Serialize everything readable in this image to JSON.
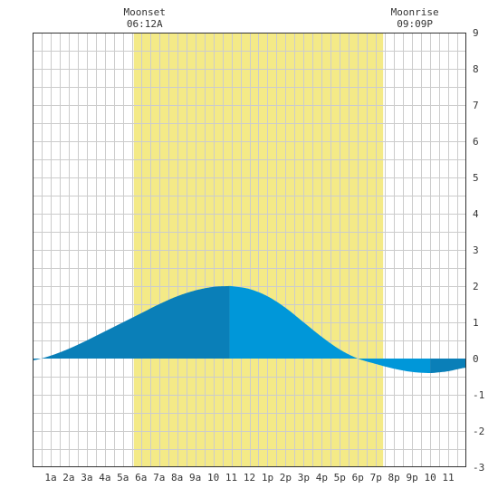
{
  "chart_data": {
    "type": "area",
    "x_unit": "hour of day",
    "xlim": [
      0,
      24
    ],
    "ylim": [
      -3,
      9
    ],
    "y_ticks": [
      -3,
      -2,
      -1,
      0,
      1,
      2,
      3,
      4,
      5,
      6,
      7,
      8,
      9
    ],
    "x_ticks": [
      {
        "x": 1,
        "label": "1a"
      },
      {
        "x": 2,
        "label": "2a"
      },
      {
        "x": 3,
        "label": "3a"
      },
      {
        "x": 4,
        "label": "4a"
      },
      {
        "x": 5,
        "label": "5a"
      },
      {
        "x": 6,
        "label": "6a"
      },
      {
        "x": 7,
        "label": "7a"
      },
      {
        "x": 8,
        "label": "8a"
      },
      {
        "x": 9,
        "label": "9a"
      },
      {
        "x": 10,
        "label": "10"
      },
      {
        "x": 11,
        "label": "11"
      },
      {
        "x": 12,
        "label": "12"
      },
      {
        "x": 13,
        "label": "1p"
      },
      {
        "x": 14,
        "label": "2p"
      },
      {
        "x": 15,
        "label": "3p"
      },
      {
        "x": 16,
        "label": "4p"
      },
      {
        "x": 17,
        "label": "5p"
      },
      {
        "x": 18,
        "label": "6p"
      },
      {
        "x": 19,
        "label": "7p"
      },
      {
        "x": 20,
        "label": "8p"
      },
      {
        "x": 21,
        "label": "9p"
      },
      {
        "x": 22,
        "label": "10"
      },
      {
        "x": 23,
        "label": "11"
      }
    ],
    "grid": true,
    "daylight": {
      "start": 5.6,
      "end": 19.4
    },
    "series": [
      {
        "x": [
          0,
          1,
          2,
          3,
          4,
          5,
          6,
          7,
          8,
          9,
          10,
          10.75,
          11,
          12,
          13,
          14,
          15,
          16,
          17,
          18,
          19,
          20,
          21,
          22,
          22.5,
          23,
          24
        ],
        "values": [
          -0.05,
          0.08,
          0.27,
          0.5,
          0.75,
          1.0,
          1.25,
          1.5,
          1.72,
          1.88,
          1.98,
          2.0,
          2.0,
          1.92,
          1.72,
          1.4,
          1.0,
          0.6,
          0.25,
          0.0,
          -0.15,
          -0.28,
          -0.37,
          -0.4,
          -0.38,
          -0.35,
          -0.25
        ]
      }
    ],
    "events": [
      {
        "name": "Moonset",
        "time": "06:12A",
        "hour": 6.2
      },
      {
        "name": "Moonrise",
        "time": "09:09P",
        "hour": 21.15
      }
    ],
    "colors": {
      "daylight": "#f4ea87",
      "grid": "#cccccc",
      "tide_rising": "#0a7fb8",
      "tide_falling": "#0097d9",
      "axis": "#333333"
    }
  }
}
